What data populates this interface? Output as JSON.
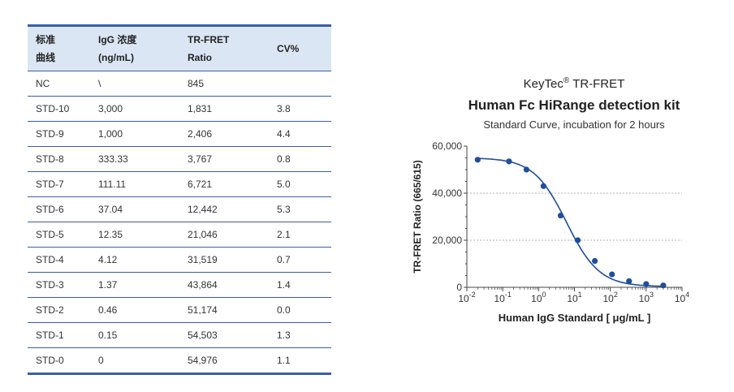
{
  "table": {
    "headers": [
      [
        "标准",
        "曲线"
      ],
      [
        "IgG 浓度",
        "(ng/mL)"
      ],
      [
        "TR-FRET",
        "Ratio"
      ],
      [
        "CV%"
      ]
    ],
    "rows": [
      [
        "NC",
        "\\",
        "845",
        ""
      ],
      [
        "STD-10",
        "3,000",
        "1,831",
        "3.8"
      ],
      [
        "STD-9",
        "1,000",
        "2,406",
        "4.4"
      ],
      [
        "STD-8",
        "333.33",
        "3,767",
        "0.8"
      ],
      [
        "STD-7",
        "111.11",
        "6,721",
        "5.0"
      ],
      [
        "STD-6",
        "37.04",
        "12,442",
        "5.3"
      ],
      [
        "STD-5",
        "12.35",
        "21,046",
        "2.1"
      ],
      [
        "STD-4",
        "4.12",
        "31,519",
        "0.7"
      ],
      [
        "STD-3",
        "1.37",
        "43,864",
        "1.4"
      ],
      [
        "STD-2",
        "0.46",
        "51,174",
        "0.0"
      ],
      [
        "STD-1",
        "0.15",
        "54,503",
        "1.3"
      ],
      [
        "STD-0",
        "0",
        "54,976",
        "1.1"
      ]
    ]
  },
  "chart_data": {
    "type": "scatter",
    "brand": "KeyTec",
    "brand_mark": "®",
    "brand_suffix": "TR-FRET",
    "title": "Human Fc HiRange detection kit",
    "subtitle": "Standard Curve, incubation for 2 hours",
    "xlabel": "Human IgG Standard  [ μg/mL ]",
    "ylabel": "TR-FRET Ratio (665/615)",
    "xscale": "log",
    "xlim": [
      0.01,
      10000
    ],
    "ylim": [
      0,
      60000
    ],
    "yticks": [
      0,
      20000,
      40000,
      60000
    ],
    "ytick_labels": [
      "0",
      "20,000",
      "40,000",
      "60,000"
    ],
    "xtick_exponents": [
      "-2",
      "-1",
      "0",
      "1",
      "2",
      "3",
      "4"
    ],
    "xtick_base": "10",
    "grid": "horizontal dashed at 20,000 and 40,000",
    "color": "#1f4e9c",
    "series": [
      {
        "points": [
          {
            "x": 0.02,
            "y": 54200
          },
          {
            "x": 0.15,
            "y": 53500
          },
          {
            "x": 0.46,
            "y": 50000
          },
          {
            "x": 1.37,
            "y": 43000
          },
          {
            "x": 4.12,
            "y": 30500
          },
          {
            "x": 12.35,
            "y": 20000
          },
          {
            "x": 37.04,
            "y": 11200
          },
          {
            "x": 111.11,
            "y": 5500
          },
          {
            "x": 333.33,
            "y": 2600
          },
          {
            "x": 1000,
            "y": 1400
          },
          {
            "x": 3000,
            "y": 800
          }
        ]
      }
    ],
    "fit": {
      "top": 55000,
      "bottom": 300,
      "ec50": 6,
      "hill": 0.95
    }
  }
}
